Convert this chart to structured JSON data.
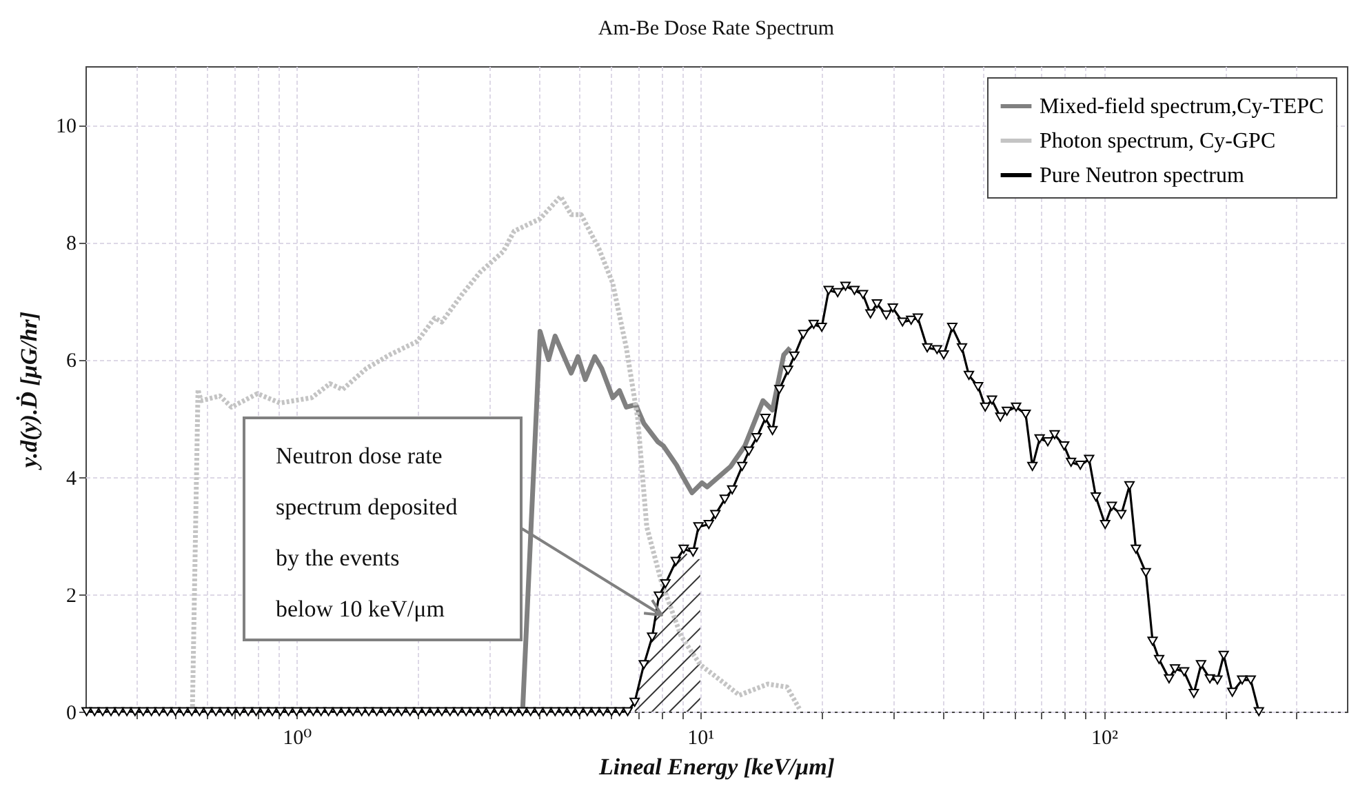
{
  "chart_data": {
    "type": "line",
    "title": "Am-Be Dose Rate Spectrum",
    "xlabel": "Lineal Energy [keV/μm]",
    "ylabel": "y.d(y).Ḋ [μG/hr]",
    "log": "x",
    "xlim": [
      0.3,
      400
    ],
    "ylim": [
      0,
      11
    ],
    "xticks": [
      {
        "value": 0.4,
        "label": null
      },
      {
        "value": 0.5,
        "label": null
      },
      {
        "value": 0.6,
        "label": null
      },
      {
        "value": 0.7,
        "label": null
      },
      {
        "value": 0.8,
        "label": null
      },
      {
        "value": 0.9,
        "label": null
      },
      {
        "value": 1,
        "label": "10⁰"
      },
      {
        "value": 2,
        "label": null
      },
      {
        "value": 3,
        "label": null
      },
      {
        "value": 4,
        "label": null
      },
      {
        "value": 5,
        "label": null
      },
      {
        "value": 6,
        "label": null
      },
      {
        "value": 7,
        "label": null
      },
      {
        "value": 8,
        "label": null
      },
      {
        "value": 9,
        "label": null
      },
      {
        "value": 10,
        "label": "10¹"
      },
      {
        "value": 20,
        "label": null
      },
      {
        "value": 30,
        "label": null
      },
      {
        "value": 40,
        "label": null
      },
      {
        "value": 50,
        "label": null
      },
      {
        "value": 60,
        "label": null
      },
      {
        "value": 70,
        "label": null
      },
      {
        "value": 80,
        "label": null
      },
      {
        "value": 90,
        "label": null
      },
      {
        "value": 100,
        "label": "10²"
      },
      {
        "value": 200,
        "label": null
      },
      {
        "value": 300,
        "label": null
      }
    ],
    "yticks": [
      0,
      2,
      4,
      6,
      8,
      10
    ],
    "grid": true,
    "legend": "top right",
    "annotations": [
      "Neutron dose rate\nspectrum deposited\nby the events\nbelow 10 keV/μm"
    ],
    "series": [
      {
        "type": "area",
        "color": "#333333",
        "x": [
          6.88,
          7.25,
          7.6,
          7.9,
          8.2,
          8.7,
          9.1,
          9.45,
          10
        ],
        "values": [
          0.16,
          0.8,
          1.27,
          1.97,
          2.18,
          2.56,
          2.77,
          2.6,
          2.6
        ]
      },
      {
        "name": "Mixed-field spectrum,Cy-TEPC",
        "color": "#808080",
        "line_style": "solid",
        "x": [
          3.63,
          4.01,
          4.21,
          4.37,
          4.79,
          4.98,
          5.19,
          5.48,
          5.7,
          6.07,
          6.31,
          6.56,
          6.92,
          7.25,
          7.85,
          8.1,
          8.74,
          8.96,
          9.54,
          10.1,
          10.4,
          11.9,
          12.9,
          14.3,
          15.1,
          16.1,
          16.7
        ],
        "values": [
          0,
          6.48,
          6.0,
          6.4,
          5.77,
          6.05,
          5.66,
          6.05,
          5.85,
          5.35,
          5.47,
          5.19,
          5.23,
          4.91,
          4.6,
          4.53,
          4.2,
          4.06,
          3.73,
          3.9,
          3.83,
          4.18,
          4.53,
          5.3,
          5.14,
          6.08,
          6.2
        ]
      },
      {
        "name": "Photon spectrum, Cy-GPC",
        "color": "#c4c4c4",
        "line_style": "dotted",
        "x": [
          0.552,
          0.57,
          0.58,
          0.646,
          0.69,
          0.8,
          0.91,
          1.09,
          1.21,
          1.3,
          1.49,
          1.7,
          1.99,
          2.2,
          2.29,
          2.57,
          2.85,
          3.25,
          3.46,
          4.01,
          4.51,
          4.79,
          5.07,
          5.61,
          6.07,
          6.56,
          7.0,
          7.37,
          8.0,
          8.96,
          10.0,
          11.2,
          12.5,
          14.7,
          16.4,
          17.6
        ],
        "values": [
          0,
          5.49,
          5.3,
          5.38,
          5.19,
          5.42,
          5.26,
          5.35,
          5.59,
          5.49,
          5.85,
          6.08,
          6.31,
          6.71,
          6.64,
          7.11,
          7.49,
          7.84,
          8.19,
          8.4,
          8.78,
          8.47,
          8.47,
          7.89,
          7.3,
          6.2,
          5.0,
          3.15,
          2.23,
          1.29,
          0.8,
          0.54,
          0.28,
          0.47,
          0.42,
          0.05
        ]
      },
      {
        "name": "Pure Neutron spectrum",
        "color": "#000000",
        "line_style": "solid",
        "marker": "triangle",
        "x": [
          0.302,
          0.316,
          0.331,
          0.347,
          0.363,
          0.38,
          0.398,
          0.417,
          0.437,
          0.457,
          0.479,
          0.501,
          0.525,
          0.55,
          0.575,
          0.603,
          0.631,
          0.661,
          0.692,
          0.724,
          0.759,
          0.794,
          0.832,
          0.871,
          0.912,
          0.955,
          1.0,
          1.05,
          1.1,
          1.15,
          1.2,
          1.26,
          1.32,
          1.38,
          1.45,
          1.51,
          1.58,
          1.66,
          1.74,
          1.82,
          1.91,
          2.0,
          2.09,
          2.19,
          2.29,
          2.4,
          2.51,
          2.63,
          2.75,
          2.88,
          3.02,
          3.16,
          3.31,
          3.47,
          3.63,
          3.8,
          3.98,
          4.17,
          4.37,
          4.57,
          4.79,
          5.01,
          5.25,
          5.5,
          5.75,
          6.03,
          6.31,
          6.61,
          6.88,
          7.25,
          7.6,
          7.9,
          8.2,
          8.7,
          9.1,
          9.6,
          9.9,
          10.5,
          10.9,
          11.5,
          12.0,
          12.7,
          13.2,
          13.8,
          14.5,
          15.1,
          15.7,
          16.5,
          17.1,
          18.0,
          19.1,
          20.0,
          20.8,
          21.9,
          22.9,
          24.1,
          25.3,
          26.4,
          27.4,
          28.9,
          30.0,
          31.7,
          33.3,
          34.6,
          36.5,
          38.6,
          40.1,
          42.1,
          44.5,
          46.3,
          48.8,
          50.8,
          52.8,
          55.4,
          57.5,
          60.6,
          64.0,
          66.5,
          69.3,
          72.6,
          75.5,
          79.7,
          82.9,
          87.4,
          91.9,
          95.5,
          100.7,
          104.6,
          110.4,
          115.7,
          120,
          127,
          132,
          137,
          145,
          150,
          158,
          167,
          174,
          183,
          191,
          198,
          208,
          220,
          231,
          242
        ],
        "values": [
          0,
          0,
          0,
          0,
          0,
          0,
          0,
          0,
          0,
          0,
          0,
          0,
          0,
          0,
          0,
          0,
          0,
          0,
          0,
          0,
          0,
          0,
          0,
          0,
          0,
          0,
          0,
          0,
          0,
          0,
          0,
          0,
          0,
          0,
          0,
          0,
          0,
          0,
          0,
          0,
          0,
          0,
          0,
          0,
          0,
          0,
          0,
          0,
          0,
          0,
          0,
          0,
          0,
          0,
          0,
          0,
          0,
          0,
          0,
          0,
          0,
          0,
          0,
          0,
          0,
          0,
          0,
          0,
          0.16,
          0.8,
          1.27,
          1.97,
          2.18,
          2.56,
          2.77,
          2.72,
          3.15,
          3.19,
          3.36,
          3.62,
          3.78,
          4.18,
          4.44,
          4.67,
          5.0,
          4.79,
          5.49,
          5.82,
          6.06,
          6.43,
          6.6,
          6.55,
          7.18,
          7.14,
          7.25,
          7.18,
          7.11,
          6.78,
          6.95,
          6.76,
          6.88,
          6.64,
          6.67,
          6.71,
          6.2,
          6.17,
          6.08,
          6.55,
          6.2,
          5.73,
          5.54,
          5.19,
          5.31,
          5.02,
          5.12,
          5.19,
          5.07,
          4.18,
          4.65,
          4.6,
          4.72,
          4.53,
          4.25,
          4.2,
          4.3,
          3.66,
          3.19,
          3.5,
          3.36,
          3.85,
          2.77,
          2.37,
          1.2,
          0.89,
          0.56,
          0.73,
          0.68,
          0.31,
          0.8,
          0.56,
          0.54,
          0.96,
          0.33,
          0.54,
          0.54,
          0
        ]
      }
    ]
  }
}
